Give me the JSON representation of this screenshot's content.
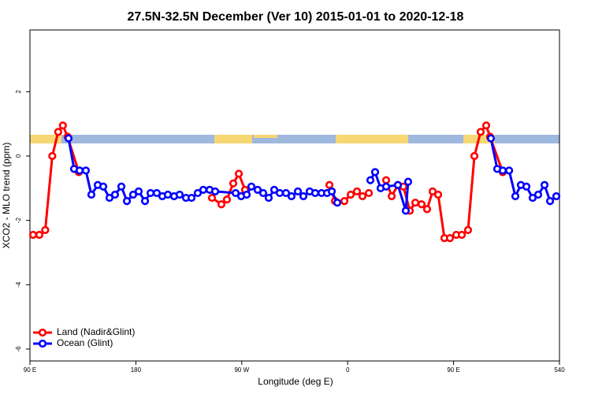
{
  "chart_data": {
    "type": "line",
    "title": "27.5N-32.5N December (Ver 10)   2015-01-01 to 2020-12-18",
    "x_label": "Longitude (deg E)",
    "y_label": "XCO2 - MLO trend (ppm)",
    "xlim": [
      90,
      540
    ],
    "ylim": [
      -6.37,
      3.92
    ],
    "xticks": [
      {
        "value": 90,
        "label": "90 E"
      },
      180,
      {
        "value": 270,
        "label": "90 W"
      },
      {
        "value": 360,
        "label": "0"
      },
      {
        "value": 450,
        "label": "90 E"
      },
      540
    ],
    "yticks": [
      2,
      0,
      -2,
      -4,
      -6
    ],
    "legend": "bottom-left",
    "series": [
      {
        "name": "Land (Nadir&Glint)",
        "color": "#ff0000",
        "x": [
          92.7,
          98,
          103,
          109,
          114,
          118,
          122,
          131.5,
          190,
          244.7,
          252.7,
          257.4,
          262.8,
          267.5,
          272.8,
          300,
          344.5,
          349.2,
          357.2,
          362.6,
          367.9,
          372.6,
          378,
          385,
          392.7,
          397.4,
          402.7,
          407.4,
          412.8,
          417.5,
          422.8,
          427.5,
          432.2,
          436.9,
          442.2,
          446.9,
          452.3,
          457,
          462.3,
          467.7,
          473,
          477.7,
          481,
          491.8
        ],
        "values": [
          -2.45,
          -2.45,
          -2.3,
          0.0,
          0.75,
          0.95,
          0.6,
          -0.5,
          null,
          -1.3,
          -1.5,
          -1.35,
          -0.85,
          -0.55,
          -1.05,
          null,
          -0.9,
          -1.4,
          -1.4,
          -1.2,
          -1.1,
          -1.25,
          -1.15,
          null,
          -0.75,
          -1.25,
          -0.9,
          -0.95,
          -1.7,
          -1.45,
          -1.5,
          -1.65,
          -1.1,
          -1.2,
          -2.55,
          -2.55,
          -2.45,
          -2.45,
          -2.3,
          0.0,
          0.75,
          0.95,
          0.6,
          -0.5
        ]
      },
      {
        "name": "Ocean (Glint)",
        "color": "#0000ff",
        "x": [
          122.8,
          127.5,
          132.2,
          137.5,
          142.2,
          147.6,
          152.3,
          157.6,
          162.3,
          167.7,
          172.4,
          177.7,
          182.4,
          187.8,
          192.5,
          197.8,
          202.5,
          207.2,
          212.5,
          217.2,
          222.6,
          227.3,
          232.6,
          237.3,
          242.7,
          247.4,
          264.8,
          269.5,
          274.2,
          278.2,
          283.5,
          288.2,
          292.9,
          297.6,
          302.3,
          307.6,
          312.3,
          317.7,
          322.4,
          327.7,
          332.4,
          337.8,
          342.5,
          346.5,
          351.2,
          365,
          379.3,
          383.3,
          388,
          392.7,
          402.7,
          409.4,
          411.4,
          450,
          481.7,
          487.1,
          491.8,
          497.2,
          502.5,
          507.2,
          511.9,
          517.2,
          521.9,
          527.3,
          532,
          537.3
        ],
        "values": [
          0.55,
          -0.4,
          -0.45,
          -0.45,
          -1.2,
          -0.9,
          -0.95,
          -1.3,
          -1.2,
          -0.95,
          -1.4,
          -1.2,
          -1.1,
          -1.4,
          -1.15,
          -1.15,
          -1.25,
          -1.2,
          -1.25,
          -1.2,
          -1.3,
          -1.3,
          -1.15,
          -1.05,
          -1.05,
          -1.1,
          -1.15,
          -1.25,
          -1.2,
          -0.95,
          -1.05,
          -1.15,
          -1.3,
          -1.05,
          -1.15,
          -1.15,
          -1.25,
          -1.1,
          -1.25,
          -1.1,
          -1.15,
          -1.15,
          -1.15,
          -1.1,
          -1.45,
          null,
          -0.75,
          -0.5,
          -1.0,
          -0.95,
          -0.9,
          -1.7,
          -0.8,
          null,
          0.55,
          -0.4,
          -0.45,
          -0.45,
          -1.25,
          -0.9,
          -0.95,
          -1.3,
          -1.2,
          -0.9,
          -1.4,
          -1.25
        ]
      }
    ]
  }
}
